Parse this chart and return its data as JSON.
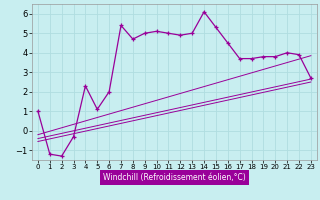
{
  "title": "",
  "xlabel": "Windchill (Refroidissement éolien,°C)",
  "bg_color": "#c8eef0",
  "grid_color": "#b0dde0",
  "line_color": "#990099",
  "xlim": [
    -0.5,
    23.5
  ],
  "ylim": [
    -1.5,
    6.5
  ],
  "yticks": [
    -1,
    0,
    1,
    2,
    3,
    4,
    5,
    6
  ],
  "xticks": [
    0,
    1,
    2,
    3,
    4,
    5,
    6,
    7,
    8,
    9,
    10,
    11,
    12,
    13,
    14,
    15,
    16,
    17,
    18,
    19,
    20,
    21,
    22,
    23
  ],
  "main_x": [
    0,
    1,
    2,
    3,
    4,
    5,
    6,
    7,
    8,
    9,
    10,
    11,
    12,
    13,
    14,
    15,
    16,
    17,
    18,
    19,
    20,
    21,
    22,
    23
  ],
  "main_y": [
    1.0,
    -1.2,
    -1.3,
    -0.3,
    2.3,
    1.1,
    2.0,
    5.4,
    4.7,
    5.0,
    5.1,
    5.0,
    4.9,
    5.0,
    6.1,
    5.3,
    4.5,
    3.7,
    3.7,
    3.8,
    3.8,
    4.0,
    3.9,
    2.7
  ],
  "trend1_x": [
    0,
    23
  ],
  "trend1_y": [
    -0.55,
    2.5
  ],
  "trend2_x": [
    0,
    23
  ],
  "trend2_y": [
    -0.4,
    2.65
  ],
  "trend3_x": [
    0,
    23
  ],
  "trend3_y": [
    -0.2,
    3.85
  ],
  "xlabel_bg": "#990099",
  "xlabel_fg": "#ffffff",
  "xlabel_fontsize": 5.5,
  "tick_fontsize_x": 5.0,
  "tick_fontsize_y": 6.0,
  "linewidth": 0.9,
  "markersize": 3.5
}
